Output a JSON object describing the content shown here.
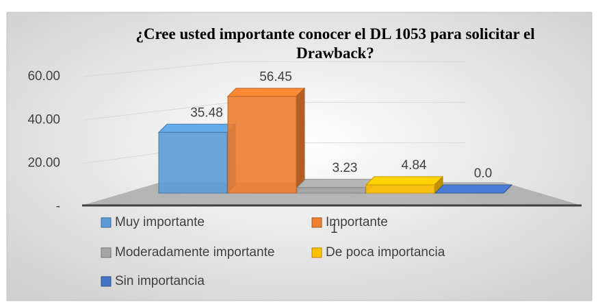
{
  "chart_data": {
    "type": "bar3d",
    "title": "¿Cree usted importante conocer el DL 1053 para solicitar el Drawback?",
    "series": [
      {
        "name": "Muy importante",
        "color": "#5b9bd5",
        "values": [
          35.48
        ],
        "value_labels": [
          "35.48"
        ]
      },
      {
        "name": "Importante",
        "color": "#ed7d31",
        "values": [
          56.45
        ],
        "value_labels": [
          "56.45"
        ]
      },
      {
        "name": "Moderadamente importante",
        "color": "#a5a5a5",
        "values": [
          3.23
        ],
        "value_labels": [
          "3.23"
        ]
      },
      {
        "name": "De poca importancia",
        "color": "#ffc000",
        "values": [
          4.84
        ],
        "value_labels": [
          "4.84"
        ]
      },
      {
        "name": "Sin importancia",
        "color": "#4472c4",
        "values": [
          0.0
        ],
        "value_labels": [
          "0.0"
        ]
      }
    ],
    "ylim": [
      0,
      60
    ],
    "yticks": [
      {
        "value": 0,
        "label": "-"
      },
      {
        "value": 20,
        "label": "20.00"
      },
      {
        "value": 40,
        "label": "40.00"
      },
      {
        "value": 60,
        "label": "60.00"
      }
    ],
    "grid": true,
    "legend": "bottom",
    "page_number": "1"
  }
}
